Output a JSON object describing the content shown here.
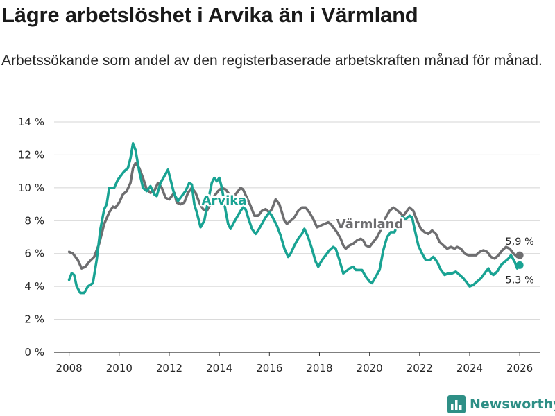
{
  "header": {
    "title": "Lägre arbetslöshet i Arvika än i Värmland",
    "subtitle": "Arbetssökande som andel av den registerbaserade arbetskraften månad för månad."
  },
  "brand": {
    "name": "Newsworthy",
    "icon": "newsworthy-logo-icon"
  },
  "colors": {
    "arvika": "#19a393",
    "varmland": "#6e6e70",
    "grid": "#d4d4d4",
    "axis": "#333333"
  },
  "chart_data": {
    "type": "line",
    "title": "Lägre arbetslöshet i Arvika än i Värmland",
    "xlabel": "",
    "ylabel": "",
    "xlim": [
      2007.4,
      2026.8
    ],
    "ylim": [
      0,
      14
    ],
    "grid": true,
    "x_ticks": [
      2008,
      2010,
      2012,
      2014,
      2016,
      2018,
      2020,
      2022,
      2024,
      2026
    ],
    "x_tick_labels": [
      "2008",
      "2010",
      "2012",
      "2014",
      "2016",
      "2018",
      "2020",
      "2022",
      "2024",
      "2026"
    ],
    "y_ticks": [
      0,
      2,
      4,
      6,
      8,
      10,
      12,
      14
    ],
    "y_tick_labels": [
      "0 %",
      "2 %",
      "4 %",
      "6 %",
      "8 %",
      "10 %",
      "12 %",
      "14 %"
    ],
    "series": [
      {
        "name": "Värmland",
        "label": "Värmland",
        "color": "#6e6e70",
        "end_label": "5,9 %",
        "end_value": 5.9,
        "points": [
          [
            2008.0,
            6.1
          ],
          [
            2008.15,
            6.0
          ],
          [
            2008.35,
            5.6
          ],
          [
            2008.5,
            5.1
          ],
          [
            2008.65,
            5.2
          ],
          [
            2008.8,
            5.5
          ],
          [
            2009.0,
            5.8
          ],
          [
            2009.2,
            6.6
          ],
          [
            2009.4,
            7.8
          ],
          [
            2009.6,
            8.5
          ],
          [
            2009.75,
            8.85
          ],
          [
            2009.85,
            8.8
          ],
          [
            2010.0,
            9.1
          ],
          [
            2010.15,
            9.6
          ],
          [
            2010.3,
            9.8
          ],
          [
            2010.45,
            10.3
          ],
          [
            2010.55,
            11.2
          ],
          [
            2010.65,
            11.5
          ],
          [
            2010.8,
            11.2
          ],
          [
            2010.95,
            10.6
          ],
          [
            2011.1,
            9.9
          ],
          [
            2011.25,
            9.7
          ],
          [
            2011.4,
            9.8
          ],
          [
            2011.55,
            10.3
          ],
          [
            2011.7,
            10.0
          ],
          [
            2011.85,
            9.4
          ],
          [
            2012.0,
            9.3
          ],
          [
            2012.2,
            9.7
          ],
          [
            2012.3,
            9.1
          ],
          [
            2012.45,
            9.0
          ],
          [
            2012.6,
            9.1
          ],
          [
            2012.75,
            9.7
          ],
          [
            2012.9,
            10.0
          ],
          [
            2013.05,
            9.7
          ],
          [
            2013.2,
            9.1
          ],
          [
            2013.35,
            8.7
          ],
          [
            2013.5,
            8.6
          ],
          [
            2013.65,
            9.0
          ],
          [
            2013.8,
            9.5
          ],
          [
            2013.95,
            9.8
          ],
          [
            2014.1,
            10.0
          ],
          [
            2014.25,
            9.9
          ],
          [
            2014.4,
            9.6
          ],
          [
            2014.55,
            9.4
          ],
          [
            2014.7,
            9.7
          ],
          [
            2014.85,
            10.0
          ],
          [
            2014.95,
            9.9
          ],
          [
            2015.1,
            9.4
          ],
          [
            2015.25,
            8.9
          ],
          [
            2015.4,
            8.3
          ],
          [
            2015.55,
            8.3
          ],
          [
            2015.7,
            8.6
          ],
          [
            2015.85,
            8.7
          ],
          [
            2016.0,
            8.5
          ],
          [
            2016.1,
            8.7
          ],
          [
            2016.25,
            9.3
          ],
          [
            2016.4,
            9.0
          ],
          [
            2016.5,
            8.5
          ],
          [
            2016.6,
            8.0
          ],
          [
            2016.7,
            7.8
          ],
          [
            2016.85,
            8.0
          ],
          [
            2017.0,
            8.2
          ],
          [
            2017.15,
            8.6
          ],
          [
            2017.3,
            8.8
          ],
          [
            2017.45,
            8.8
          ],
          [
            2017.6,
            8.5
          ],
          [
            2017.75,
            8.1
          ],
          [
            2017.9,
            7.6
          ],
          [
            2018.05,
            7.7
          ],
          [
            2018.2,
            7.8
          ],
          [
            2018.35,
            7.9
          ],
          [
            2018.45,
            7.8
          ],
          [
            2018.5,
            7.7
          ],
          [
            2018.7,
            7.3
          ],
          [
            2018.85,
            6.9
          ],
          [
            2018.95,
            6.5
          ],
          [
            2019.05,
            6.3
          ],
          [
            2019.2,
            6.5
          ],
          [
            2019.35,
            6.6
          ],
          [
            2019.5,
            6.8
          ],
          [
            2019.65,
            6.9
          ],
          [
            2019.75,
            6.8
          ],
          [
            2019.85,
            6.5
          ],
          [
            2020.0,
            6.4
          ],
          [
            2020.1,
            6.6
          ],
          [
            2020.3,
            7.0
          ],
          [
            2020.5,
            7.6
          ],
          [
            2020.65,
            8.2
          ],
          [
            2020.8,
            8.6
          ],
          [
            2020.95,
            8.8
          ],
          [
            2021.05,
            8.7
          ],
          [
            2021.2,
            8.5
          ],
          [
            2021.35,
            8.3
          ],
          [
            2021.5,
            8.6
          ],
          [
            2021.6,
            8.8
          ],
          [
            2021.75,
            8.6
          ],
          [
            2021.9,
            8.0
          ],
          [
            2022.05,
            7.5
          ],
          [
            2022.2,
            7.3
          ],
          [
            2022.35,
            7.2
          ],
          [
            2022.5,
            7.4
          ],
          [
            2022.65,
            7.2
          ],
          [
            2022.8,
            6.7
          ],
          [
            2022.95,
            6.5
          ],
          [
            2023.1,
            6.3
          ],
          [
            2023.25,
            6.4
          ],
          [
            2023.4,
            6.3
          ],
          [
            2023.5,
            6.4
          ],
          [
            2023.65,
            6.3
          ],
          [
            2023.8,
            6.0
          ],
          [
            2023.95,
            5.9
          ],
          [
            2024.1,
            5.9
          ],
          [
            2024.25,
            5.9
          ],
          [
            2024.4,
            6.1
          ],
          [
            2024.55,
            6.2
          ],
          [
            2024.7,
            6.1
          ],
          [
            2024.85,
            5.8
          ],
          [
            2025.0,
            5.7
          ],
          [
            2025.15,
            5.9
          ],
          [
            2025.3,
            6.2
          ],
          [
            2025.45,
            6.4
          ],
          [
            2025.6,
            6.3
          ],
          [
            2025.75,
            6.0
          ],
          [
            2025.9,
            5.8
          ],
          [
            2026.0,
            5.9
          ]
        ]
      },
      {
        "name": "Arvika",
        "label": "Arvika",
        "color": "#19a393",
        "end_label": "5,3 %",
        "end_value": 5.3,
        "points": [
          [
            2008.0,
            4.4
          ],
          [
            2008.1,
            4.8
          ],
          [
            2008.2,
            4.7
          ],
          [
            2008.3,
            4.0
          ],
          [
            2008.45,
            3.6
          ],
          [
            2008.6,
            3.6
          ],
          [
            2008.75,
            4.0
          ],
          [
            2008.95,
            4.2
          ],
          [
            2009.1,
            5.6
          ],
          [
            2009.25,
            7.5
          ],
          [
            2009.4,
            8.7
          ],
          [
            2009.5,
            9.0
          ],
          [
            2009.6,
            10.0
          ],
          [
            2009.8,
            10.0
          ],
          [
            2009.95,
            10.5
          ],
          [
            2010.1,
            10.8
          ],
          [
            2010.2,
            11.0
          ],
          [
            2010.35,
            11.2
          ],
          [
            2010.45,
            11.8
          ],
          [
            2010.55,
            12.7
          ],
          [
            2010.65,
            12.3
          ],
          [
            2010.8,
            11.0
          ],
          [
            2010.95,
            10.0
          ],
          [
            2011.1,
            9.8
          ],
          [
            2011.25,
            10.1
          ],
          [
            2011.4,
            9.6
          ],
          [
            2011.5,
            9.5
          ],
          [
            2011.65,
            10.3
          ],
          [
            2011.8,
            10.7
          ],
          [
            2011.95,
            11.1
          ],
          [
            2012.05,
            10.5
          ],
          [
            2012.2,
            9.6
          ],
          [
            2012.35,
            9.2
          ],
          [
            2012.5,
            9.5
          ],
          [
            2012.65,
            9.8
          ],
          [
            2012.8,
            10.3
          ],
          [
            2012.9,
            10.2
          ],
          [
            2013.0,
            9.0
          ],
          [
            2013.1,
            8.5
          ],
          [
            2013.25,
            7.6
          ],
          [
            2013.4,
            8.0
          ],
          [
            2013.55,
            9.2
          ],
          [
            2013.7,
            10.3
          ],
          [
            2013.8,
            10.6
          ],
          [
            2013.9,
            10.4
          ],
          [
            2014.0,
            10.6
          ],
          [
            2014.1,
            10.0
          ],
          [
            2014.25,
            8.6
          ],
          [
            2014.35,
            7.8
          ],
          [
            2014.45,
            7.5
          ],
          [
            2014.55,
            7.8
          ],
          [
            2014.7,
            8.2
          ],
          [
            2014.85,
            8.6
          ],
          [
            2014.95,
            8.8
          ],
          [
            2015.05,
            8.7
          ],
          [
            2015.15,
            8.2
          ],
          [
            2015.3,
            7.5
          ],
          [
            2015.45,
            7.2
          ],
          [
            2015.55,
            7.4
          ],
          [
            2015.7,
            7.8
          ],
          [
            2015.85,
            8.2
          ],
          [
            2016.0,
            8.5
          ],
          [
            2016.1,
            8.3
          ],
          [
            2016.3,
            7.7
          ],
          [
            2016.45,
            7.1
          ],
          [
            2016.6,
            6.3
          ],
          [
            2016.75,
            5.8
          ],
          [
            2016.85,
            6.0
          ],
          [
            2017.0,
            6.5
          ],
          [
            2017.15,
            6.9
          ],
          [
            2017.3,
            7.2
          ],
          [
            2017.4,
            7.5
          ],
          [
            2017.55,
            7.0
          ],
          [
            2017.7,
            6.3
          ],
          [
            2017.85,
            5.5
          ],
          [
            2017.95,
            5.2
          ],
          [
            2018.1,
            5.6
          ],
          [
            2018.25,
            5.9
          ],
          [
            2018.4,
            6.2
          ],
          [
            2018.55,
            6.4
          ],
          [
            2018.65,
            6.3
          ],
          [
            2018.8,
            5.6
          ],
          [
            2018.95,
            4.8
          ],
          [
            2019.05,
            4.9
          ],
          [
            2019.2,
            5.1
          ],
          [
            2019.35,
            5.2
          ],
          [
            2019.45,
            5.0
          ],
          [
            2019.55,
            5.0
          ],
          [
            2019.7,
            5.0
          ],
          [
            2019.85,
            4.6
          ],
          [
            2020.0,
            4.3
          ],
          [
            2020.1,
            4.2
          ],
          [
            2020.25,
            4.6
          ],
          [
            2020.4,
            5.0
          ],
          [
            2020.55,
            6.2
          ],
          [
            2020.7,
            7.0
          ],
          [
            2020.85,
            7.3
          ],
          [
            2021.0,
            7.3
          ],
          [
            2021.15,
            7.9
          ],
          [
            2021.3,
            8.2
          ],
          [
            2021.45,
            8.1
          ],
          [
            2021.6,
            8.3
          ],
          [
            2021.7,
            8.2
          ],
          [
            2021.8,
            7.5
          ],
          [
            2021.95,
            6.5
          ],
          [
            2022.1,
            6.0
          ],
          [
            2022.25,
            5.6
          ],
          [
            2022.4,
            5.6
          ],
          [
            2022.55,
            5.8
          ],
          [
            2022.7,
            5.5
          ],
          [
            2022.85,
            5.0
          ],
          [
            2023.0,
            4.7
          ],
          [
            2023.15,
            4.8
          ],
          [
            2023.3,
            4.8
          ],
          [
            2023.45,
            4.9
          ],
          [
            2023.6,
            4.7
          ],
          [
            2023.75,
            4.5
          ],
          [
            2023.9,
            4.2
          ],
          [
            2024.0,
            4.0
          ],
          [
            2024.15,
            4.1
          ],
          [
            2024.3,
            4.3
          ],
          [
            2024.45,
            4.5
          ],
          [
            2024.6,
            4.8
          ],
          [
            2024.75,
            5.1
          ],
          [
            2024.85,
            4.8
          ],
          [
            2024.95,
            4.7
          ],
          [
            2025.1,
            4.9
          ],
          [
            2025.25,
            5.3
          ],
          [
            2025.4,
            5.5
          ],
          [
            2025.55,
            5.7
          ],
          [
            2025.65,
            5.9
          ],
          [
            2025.8,
            5.5
          ],
          [
            2025.9,
            5.1
          ],
          [
            2026.0,
            5.3
          ]
        ]
      }
    ]
  }
}
